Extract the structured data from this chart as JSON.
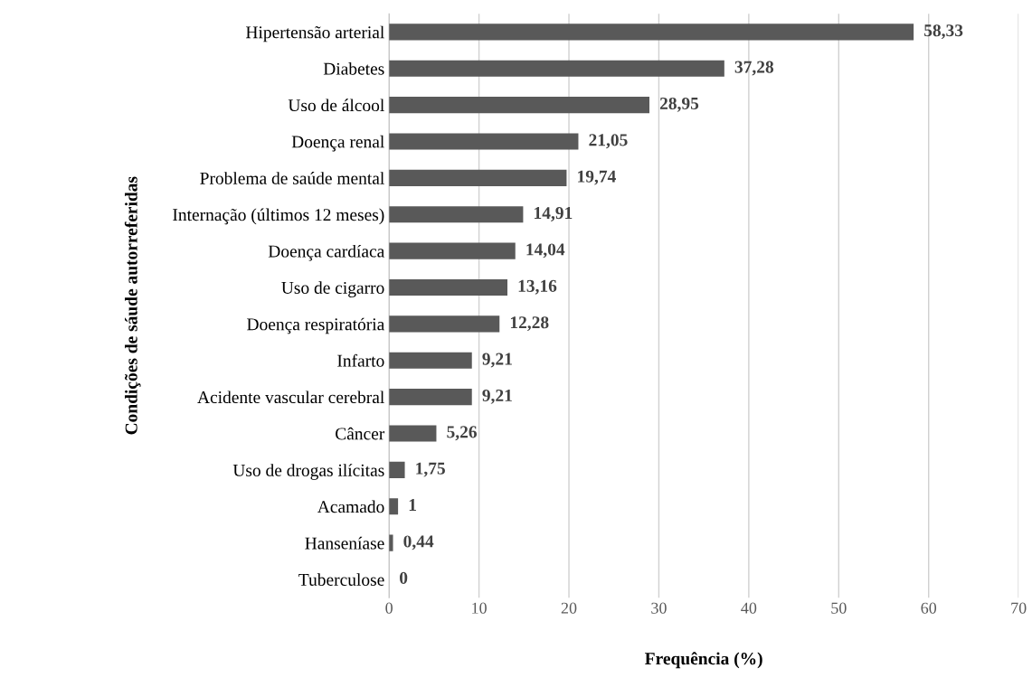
{
  "chart_data": {
    "type": "bar",
    "orientation": "horizontal",
    "xlabel": "Frequência (%)",
    "ylabel": "Condições de sáude autorreferidas",
    "categories": [
      "Hipertensão arterial",
      "Diabetes",
      "Uso de álcool",
      "Doença renal",
      "Problema de saúde mental",
      "Internação (últimos 12 meses)",
      "Doença cardíaca",
      "Uso de cigarro",
      "Doença respiratória",
      "Infarto",
      "Acidente vascular cerebral",
      "Câncer",
      "Uso de drogas ilícitas",
      "Acamado",
      "Hanseníase",
      "Tuberculose"
    ],
    "values": [
      58.33,
      37.28,
      28.95,
      21.05,
      19.74,
      14.91,
      14.04,
      13.16,
      12.28,
      9.21,
      9.21,
      5.26,
      1.75,
      1,
      0.44,
      0
    ],
    "value_labels": [
      "58,33",
      "37,28",
      "28,95",
      "21,05",
      "19,74",
      "14,91",
      "14,04",
      "13,16",
      "12,28",
      "9,21",
      "9,21",
      "5,26",
      "1,75",
      "1",
      "0,44",
      "0"
    ],
    "color": "#595959",
    "xlim": [
      0,
      70
    ],
    "xticks": [
      0,
      10,
      20,
      30,
      40,
      50,
      60,
      70
    ],
    "grid": "x",
    "legend": false
  }
}
